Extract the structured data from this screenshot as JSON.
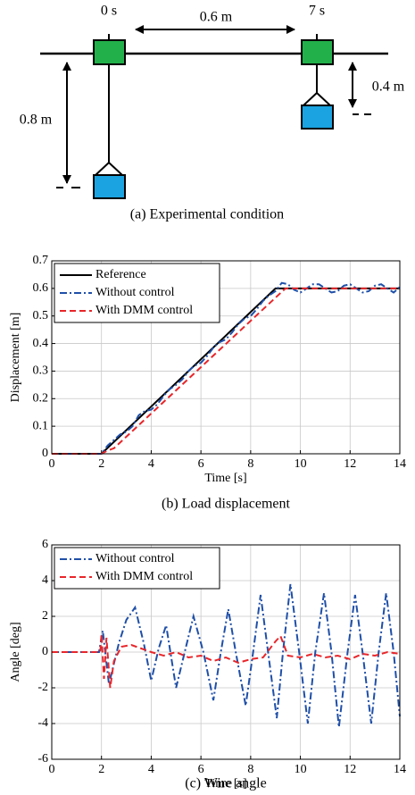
{
  "diagram": {
    "start_time": "0 s",
    "end_time": "7 s",
    "travel": "0.6 m",
    "initial_height": "0.8 m",
    "final_height": "0.4 m",
    "caption": "(a)  Experimental condition"
  },
  "chart_data": [
    {
      "type": "line",
      "caption": "(b)  Load displacement",
      "xlabel": "Time [s]",
      "ylabel": "Displacement [m]",
      "xlim": [
        0,
        14
      ],
      "ylim": [
        0,
        0.7
      ],
      "xticks": [
        0,
        2,
        4,
        6,
        8,
        10,
        12,
        14
      ],
      "yticks": [
        0,
        0.1,
        0.2,
        0.3,
        0.4,
        0.5,
        0.6,
        0.7
      ],
      "grid": true,
      "legend": "upper left",
      "series": [
        {
          "name": "Reference",
          "color": "#000000",
          "linestyle": "solid",
          "x": [
            0,
            2,
            9,
            14
          ],
          "values": [
            0,
            0,
            0.6,
            0.6
          ]
        },
        {
          "name": "Without control",
          "color": "#1f4fa8",
          "linestyle": "dashdot",
          "x": [
            0,
            0.25,
            0.5,
            0.75,
            1,
            1.25,
            1.5,
            1.75,
            2,
            2.25,
            2.5,
            2.75,
            3,
            3.25,
            3.5,
            3.75,
            4,
            4.25,
            4.5,
            4.75,
            5,
            5.25,
            5.5,
            5.75,
            6,
            6.25,
            6.5,
            6.75,
            7,
            7.25,
            7.5,
            7.75,
            8,
            8.25,
            8.5,
            8.75,
            9,
            9.25,
            9.5,
            9.75,
            10,
            10.25,
            10.5,
            10.75,
            11,
            11.25,
            11.5,
            11.75,
            12,
            12.25,
            12.5,
            12.75,
            13,
            13.25,
            13.5,
            13.75,
            14
          ],
          "values": [
            0,
            0,
            0,
            0,
            0,
            0,
            0,
            0,
            0,
            0.03,
            0.05,
            0.07,
            0.08,
            0.1,
            0.14,
            0.155,
            0.16,
            0.18,
            0.21,
            0.235,
            0.25,
            0.27,
            0.3,
            0.32,
            0.33,
            0.355,
            0.385,
            0.405,
            0.415,
            0.44,
            0.47,
            0.49,
            0.5,
            0.525,
            0.555,
            0.575,
            0.59,
            0.62,
            0.615,
            0.595,
            0.585,
            0.6,
            0.615,
            0.615,
            0.6,
            0.585,
            0.59,
            0.61,
            0.615,
            0.6,
            0.585,
            0.59,
            0.61,
            0.615,
            0.6,
            0.585,
            0.605
          ]
        },
        {
          "name": "With DMM control",
          "color": "#e8262a",
          "linestyle": "dashed",
          "x": [
            0,
            2,
            2.2,
            2.5,
            9.4,
            14
          ],
          "values": [
            0,
            0,
            0.01,
            0.02,
            0.6,
            0.6
          ]
        }
      ]
    },
    {
      "type": "line",
      "caption": "(c)  Wire angle",
      "xlabel": "Time [s]",
      "ylabel": "Angle [deg]",
      "xlim": [
        0,
        14
      ],
      "ylim": [
        -6,
        6
      ],
      "xticks": [
        0,
        2,
        4,
        6,
        8,
        10,
        12,
        14
      ],
      "yticks": [
        -6,
        -4,
        -2,
        0,
        2,
        4,
        6
      ],
      "grid": true,
      "legend": "upper left",
      "series": [
        {
          "name": "Without control",
          "color": "#1f4fa8",
          "linestyle": "dashdot",
          "x": [
            0,
            1.9,
            2.05,
            2.3,
            2.7,
            3.0,
            3.35,
            3.7,
            4.0,
            4.3,
            4.6,
            5.0,
            5.4,
            5.7,
            6.1,
            6.5,
            6.8,
            7.1,
            7.4,
            7.8,
            8.1,
            8.4,
            8.7,
            9.05,
            9.3,
            9.6,
            9.95,
            10.3,
            10.6,
            10.95,
            11.25,
            11.55,
            11.9,
            12.2,
            12.5,
            12.85,
            13.15,
            13.45,
            13.75,
            14.0
          ],
          "values": [
            0,
            0,
            1.2,
            -1.8,
            0.5,
            1.8,
            2.5,
            0.5,
            -1.6,
            0.2,
            1.5,
            -2.0,
            0.3,
            2.0,
            0,
            -2.7,
            0,
            2.4,
            0,
            -3.0,
            0,
            3.2,
            0,
            -3.7,
            0,
            3.8,
            0,
            -4.0,
            0,
            3.3,
            0,
            -4.2,
            0,
            3.2,
            0,
            -4.0,
            0,
            3.3,
            0,
            -3.6
          ]
        },
        {
          "name": "With DMM control",
          "color": "#e8262a",
          "linestyle": "dashed",
          "x": [
            0,
            1.95,
            2.0,
            2.1,
            2.2,
            2.35,
            2.5,
            2.8,
            3.2,
            3.6,
            4.0,
            4.5,
            5.0,
            5.5,
            6.0,
            6.5,
            7.0,
            7.5,
            8.0,
            8.5,
            9.0,
            9.2,
            9.5,
            10,
            10.5,
            11,
            11.5,
            12,
            12.5,
            13,
            13.5,
            14
          ],
          "values": [
            0,
            0,
            1.0,
            -1.5,
            0.8,
            -2.0,
            -0.5,
            0.3,
            0.4,
            0.2,
            0,
            -0.2,
            0,
            -0.3,
            -0.2,
            -0.5,
            -0.3,
            -0.6,
            -0.4,
            -0.3,
            0.6,
            0.9,
            -0.2,
            -0.3,
            -0.1,
            -0.3,
            -0.2,
            -0.4,
            -0.1,
            -0.2,
            0,
            -0.1
          ]
        }
      ]
    }
  ]
}
